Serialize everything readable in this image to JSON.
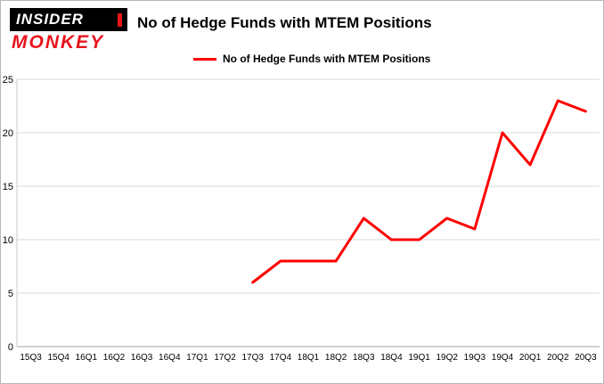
{
  "logo": {
    "top": "INSIDER",
    "bottom": "MONKEY"
  },
  "header": {
    "title": "No of Hedge Funds with MTEM Positions"
  },
  "legend": {
    "label": "No of Hedge Funds with MTEM Positions",
    "color": "#ff0000"
  },
  "chart_data": {
    "type": "line",
    "title": "No of Hedge Funds with MTEM Positions",
    "categories": [
      "15Q3",
      "15Q4",
      "16Q1",
      "16Q2",
      "16Q3",
      "16Q4",
      "17Q1",
      "17Q2",
      "17Q3",
      "17Q4",
      "18Q1",
      "18Q2",
      "18Q3",
      "18Q4",
      "19Q1",
      "19Q2",
      "19Q3",
      "19Q4",
      "20Q1",
      "20Q2",
      "20Q3"
    ],
    "series": [
      {
        "name": "No of Hedge Funds with MTEM Positions",
        "color": "#ff0000",
        "values": [
          null,
          null,
          null,
          null,
          null,
          null,
          null,
          null,
          6,
          8,
          8,
          8,
          12,
          10,
          10,
          12,
          11,
          20,
          17,
          23,
          22
        ]
      }
    ],
    "xlabel": "",
    "ylabel": "",
    "ylim": [
      0,
      25
    ],
    "yticks": [
      0,
      5,
      10,
      15,
      20,
      25
    ],
    "grid": true,
    "legend_position": "top"
  }
}
